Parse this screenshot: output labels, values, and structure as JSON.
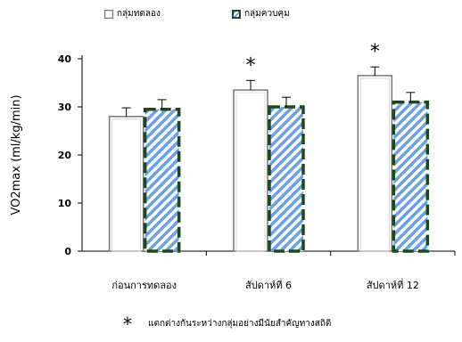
{
  "chart_data": {
    "type": "bar",
    "categories": [
      "ก่อนการทดลอง",
      "สัปดาห์ที่ 6",
      "สัปดาห์ที่ 12"
    ],
    "series": [
      {
        "name": "กลุ่มทดลอง",
        "values": [
          28,
          33.5,
          36.5
        ],
        "errors": [
          1.8,
          2.0,
          1.8
        ],
        "color": "#ffffff",
        "edge": "#777777"
      },
      {
        "name": "กลุ่มควบคุม",
        "values": [
          29.5,
          30,
          31
        ],
        "errors": [
          2.0,
          2.0,
          2.0
        ],
        "hatch_color": "#6aa0e8",
        "edge": "#1a4a1a"
      }
    ],
    "ylabel": "VO2max (ml/kg/min)",
    "xlabel": "",
    "ylim": [
      0,
      40
    ],
    "yticks": [
      0,
      10,
      20,
      30,
      40
    ],
    "significance_markers": [
      {
        "category_index": 1,
        "symbol": "*"
      },
      {
        "category_index": 2,
        "symbol": "*"
      }
    ],
    "grid": false,
    "legend": "top"
  },
  "footnote": {
    "symbol": "*",
    "text": "แตกต่างกันระหว่างกลุ่มอย่างมีนัยสำคัญทางสถิติ"
  }
}
